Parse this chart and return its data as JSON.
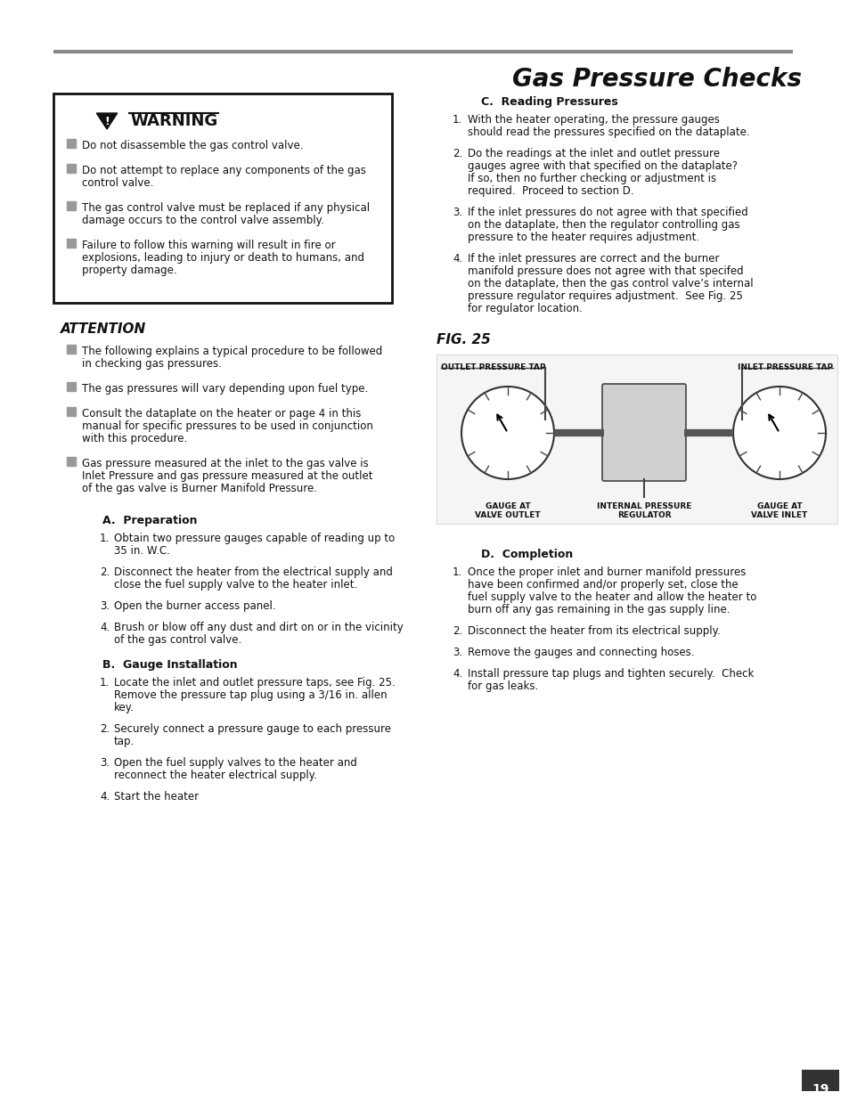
{
  "title": "Gas Pressure Checks",
  "page_number": "19",
  "bg_color": "#ffffff",
  "header_line_color": "#888888",
  "warning_box": {
    "title": "WARNING",
    "items": [
      "Do not disassemble the gas control valve.",
      "Do not attempt to replace any components of the gas\ncontrol valve.",
      "The gas control valve must be replaced if any physical\ndamage occurs to the control valve assembly.",
      "Failure to follow this warning will result in fire or\nexplosions, leading to injury or death to humans, and\nproperty damage."
    ]
  },
  "attention_section": {
    "title": "ATTENTION",
    "items": [
      "The following explains a typical procedure to be followed\nin checking gas pressures.",
      "The gas pressures will vary depending upon fuel type.",
      "Consult the dataplate on the heater or page 4 in this\nmanual for specific pressures to be used in conjunction\nwith this procedure.",
      "Gas pressure measured at the inlet to the gas valve is\nInlet Pressure and gas pressure measured at the outlet\nof the gas valve is Burner Manifold Pressure."
    ]
  },
  "section_a": {
    "title": "A.  Preparation",
    "items": [
      "Obtain two pressure gauges capable of reading up to\n35 in. W.C.",
      "Disconnect the heater from the electrical supply and\nclose the fuel supply valve to the heater inlet.",
      "Open the burner access panel.",
      "Brush or blow off any dust and dirt on or in the vicinity\nof the gas control valve."
    ]
  },
  "section_b": {
    "title": "B.  Gauge Installation",
    "items": [
      "Locate the inlet and outlet pressure taps, see Fig. 25.\nRemove the pressure tap plug using a 3/16 in. allen\nkey.",
      "Securely connect a pressure gauge to each pressure\ntap.",
      "Open the fuel supply valves to the heater and\nreconnect the heater electrical supply.",
      "Start the heater"
    ]
  },
  "section_c": {
    "title": "C.  Reading Pressures",
    "items": [
      "With the heater operating, the pressure gauges\nshould read the pressures specified on the dataplate.",
      "Do the readings at the inlet and outlet pressure\ngauges agree with that specified on the dataplate?\nIf so, then no further checking or adjustment is\nrequired.  Proceed to section D.",
      "If the inlet pressures do not agree with that specified\non the dataplate, then the regulator controlling gas\npressure to the heater requires adjustment.",
      "If the inlet pressures are correct and the burner\nmanifold pressure does not agree with that specifed\non the dataplate, then the gas control valve’s internal\npressure regulator requires adjustment.  See Fig. 25\nfor regulator location."
    ]
  },
  "fig25_title": "FIG. 25",
  "section_d": {
    "title": "D.  Completion",
    "items": [
      "Once the proper inlet and burner manifold pressures\nhave been confirmed and/or properly set, close the\nfuel supply valve to the heater and allow the heater to\nburn off any gas remaining in the gas supply line.",
      "Disconnect the heater from its electrical supply.",
      "Remove the gauges and connecting hoses.",
      "Install pressure tap plugs and tighten securely.  Check\nfor gas leaks."
    ]
  }
}
